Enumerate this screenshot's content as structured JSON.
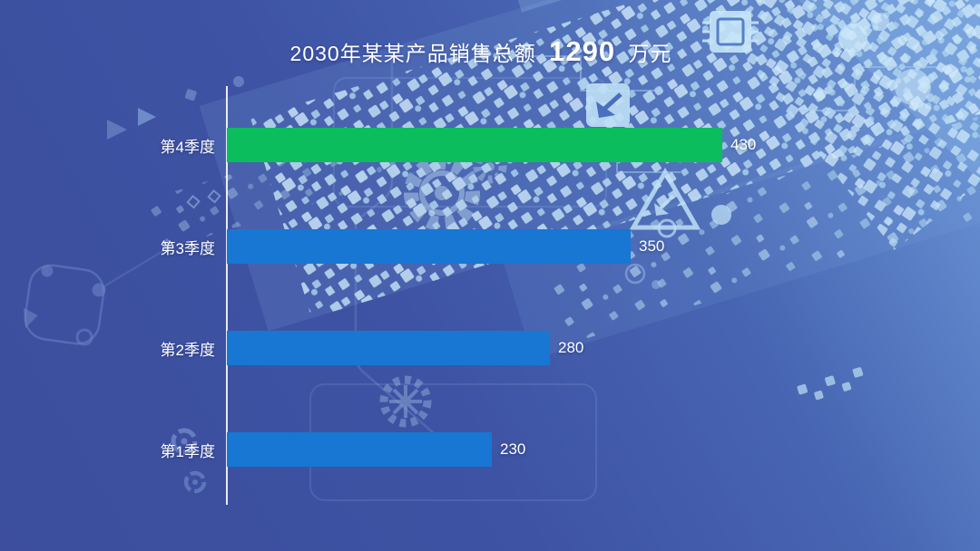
{
  "title": {
    "prefix": "2030年某某产品销售总额",
    "total": "1290",
    "unit": "万元"
  },
  "chart_data": {
    "type": "bar",
    "orientation": "horizontal",
    "title": "2030年某某产品销售总额 1290 万元",
    "categories": [
      "第4季度",
      "第3季度",
      "第2季度",
      "第1季度"
    ],
    "values": [
      430,
      350,
      280,
      230
    ],
    "total": 1290,
    "bar_colors": [
      "#0cbd5e",
      "#1777d3",
      "#1777d3",
      "#1777d3"
    ],
    "value_label_color": "#ffffff",
    "xlim": [
      0,
      470
    ],
    "grid": false,
    "legend": false,
    "axis": "left-vertical-baseline-only"
  },
  "style": {
    "accent_green": "#0cbd5e",
    "accent_blue": "#1777d3",
    "background_dark": "#3c4e9d",
    "background_light": "#6f9ada",
    "circuit_light": "#c6e4f6",
    "text": "#ffffff"
  }
}
